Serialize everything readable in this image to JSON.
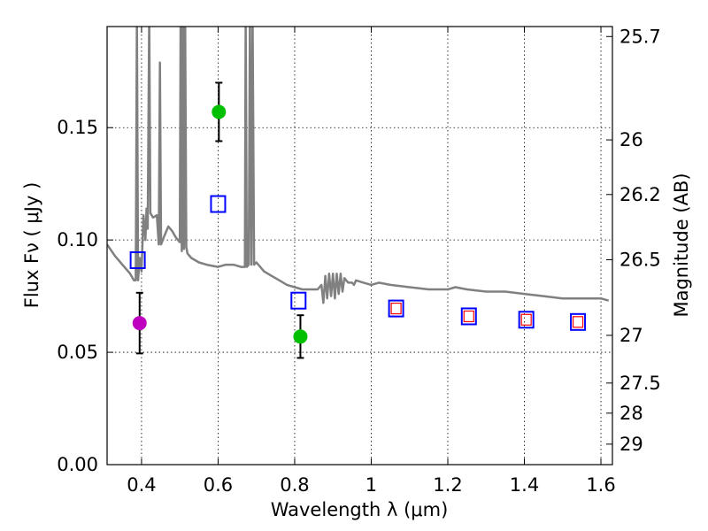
{
  "chart_data": {
    "type": "scatter",
    "xlabel": "Wavelength  λ (μm)",
    "ylabel": "Flux  Fν  ( μJy )",
    "ylabel_right": "Magnitude (AB)",
    "xlim": [
      0.31,
      1.63
    ],
    "ylim": [
      0.0,
      0.195
    ],
    "x_ticks": [
      {
        "value": 0.4,
        "label": "0.4"
      },
      {
        "value": 0.6,
        "label": "0.6"
      },
      {
        "value": 0.8,
        "label": "0.8"
      },
      {
        "value": 1.0,
        "label": "1"
      },
      {
        "value": 1.2,
        "label": "1.2"
      },
      {
        "value": 1.4,
        "label": "1.4"
      },
      {
        "value": 1.6,
        "label": "1.6"
      }
    ],
    "y_ticks": [
      {
        "value": 0.0,
        "label": "0.00"
      },
      {
        "value": 0.05,
        "label": "0.05"
      },
      {
        "value": 0.1,
        "label": "0.10"
      },
      {
        "value": 0.15,
        "label": "0.15"
      }
    ],
    "mag_ticks": [
      {
        "value": 25.7,
        "label": "25.7"
      },
      {
        "value": 26.0,
        "label": "26"
      },
      {
        "value": 26.2,
        "label": "26.2"
      },
      {
        "value": 26.5,
        "label": "26.5"
      },
      {
        "value": 27.0,
        "label": "27"
      },
      {
        "value": 27.5,
        "label": "27.5"
      },
      {
        "value": 28.0,
        "label": "28"
      },
      {
        "value": 29.0,
        "label": "29"
      }
    ],
    "grid": true,
    "observed": [
      {
        "x": 0.395,
        "y": 0.063,
        "err": 0.0135,
        "color": "#bf00bf"
      },
      {
        "x": 0.602,
        "y": 0.157,
        "err": 0.013,
        "color": "#00c000"
      },
      {
        "x": 0.815,
        "y": 0.057,
        "err": 0.0095,
        "color": "#00c000"
      }
    ],
    "model_bandpass": [
      {
        "x": 0.39,
        "y": 0.091
      },
      {
        "x": 0.6,
        "y": 0.116
      },
      {
        "x": 0.81,
        "y": 0.073
      },
      {
        "x": 1.065,
        "y": 0.0695
      },
      {
        "x": 1.255,
        "y": 0.066
      },
      {
        "x": 1.405,
        "y": 0.0645
      },
      {
        "x": 1.54,
        "y": 0.0635
      }
    ],
    "model_bandpass_inner": [
      {
        "x": 1.065,
        "y": 0.0695
      },
      {
        "x": 1.255,
        "y": 0.066
      },
      {
        "x": 1.405,
        "y": 0.0645
      },
      {
        "x": 1.54,
        "y": 0.0635
      }
    ],
    "model_sed": {
      "color": "#808080",
      "points": [
        [
          0.31,
          0.098
        ],
        [
          0.33,
          0.093
        ],
        [
          0.35,
          0.089
        ],
        [
          0.37,
          0.085
        ],
        [
          0.38,
          0.082
        ],
        [
          0.385,
          0.082
        ],
        [
          0.388,
          0.2
        ],
        [
          0.391,
          0.082
        ],
        [
          0.395,
          0.092
        ],
        [
          0.4,
          0.086
        ],
        [
          0.405,
          0.111
        ],
        [
          0.41,
          0.1
        ],
        [
          0.413,
          0.114
        ],
        [
          0.416,
          0.105
        ],
        [
          0.42,
          0.2
        ],
        [
          0.423,
          0.112
        ],
        [
          0.43,
          0.11
        ],
        [
          0.44,
          0.111
        ],
        [
          0.445,
          0.098
        ],
        [
          0.448,
          0.179
        ],
        [
          0.451,
          0.098
        ],
        [
          0.46,
          0.102
        ],
        [
          0.47,
          0.106
        ],
        [
          0.48,
          0.104
        ],
        [
          0.49,
          0.101
        ],
        [
          0.5,
          0.099
        ],
        [
          0.502,
          0.2
        ],
        [
          0.505,
          0.095
        ],
        [
          0.508,
          0.2
        ],
        [
          0.511,
          0.096
        ],
        [
          0.514,
          0.2
        ],
        [
          0.517,
          0.097
        ],
        [
          0.52,
          0.094
        ],
        [
          0.53,
          0.092
        ],
        [
          0.55,
          0.09
        ],
        [
          0.57,
          0.089
        ],
        [
          0.6,
          0.088
        ],
        [
          0.62,
          0.089
        ],
        [
          0.64,
          0.089
        ],
        [
          0.66,
          0.088
        ],
        [
          0.67,
          0.088
        ],
        [
          0.672,
          0.2
        ],
        [
          0.675,
          0.088
        ],
        [
          0.68,
          0.089
        ],
        [
          0.683,
          0.2
        ],
        [
          0.687,
          0.089
        ],
        [
          0.69,
          0.2
        ],
        [
          0.694,
          0.089
        ],
        [
          0.7,
          0.09
        ],
        [
          0.72,
          0.086
        ],
        [
          0.74,
          0.084
        ],
        [
          0.76,
          0.082
        ],
        [
          0.78,
          0.08
        ],
        [
          0.8,
          0.079
        ],
        [
          0.82,
          0.078
        ],
        [
          0.84,
          0.078
        ],
        [
          0.86,
          0.078
        ],
        [
          0.87,
          0.08
        ],
        [
          0.875,
          0.072
        ],
        [
          0.88,
          0.084
        ],
        [
          0.885,
          0.074
        ],
        [
          0.89,
          0.085
        ],
        [
          0.895,
          0.075
        ],
        [
          0.9,
          0.085
        ],
        [
          0.905,
          0.074
        ],
        [
          0.91,
          0.085
        ],
        [
          0.915,
          0.076
        ],
        [
          0.92,
          0.085
        ],
        [
          0.925,
          0.077
        ],
        [
          0.93,
          0.083
        ],
        [
          0.94,
          0.081
        ],
        [
          0.95,
          0.081
        ],
        [
          0.955,
          0.08
        ],
        [
          0.96,
          0.082
        ],
        [
          0.98,
          0.081
        ],
        [
          1.0,
          0.08
        ],
        [
          1.02,
          0.081
        ],
        [
          1.05,
          0.08
        ],
        [
          1.1,
          0.079
        ],
        [
          1.15,
          0.078
        ],
        [
          1.2,
          0.078
        ],
        [
          1.22,
          0.079
        ],
        [
          1.25,
          0.078
        ],
        [
          1.3,
          0.077
        ],
        [
          1.35,
          0.077
        ],
        [
          1.4,
          0.076
        ],
        [
          1.45,
          0.075
        ],
        [
          1.5,
          0.074
        ],
        [
          1.55,
          0.074
        ],
        [
          1.6,
          0.074
        ],
        [
          1.62,
          0.073
        ]
      ]
    }
  }
}
